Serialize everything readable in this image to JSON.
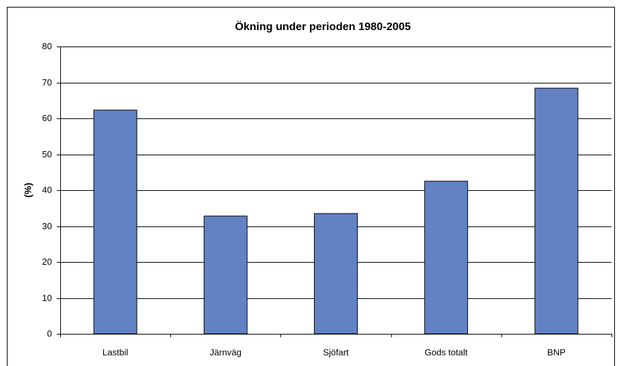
{
  "chart_data": {
    "type": "bar",
    "title": "Ökning under perioden 1980-2005",
    "y_label": "(%)",
    "categories": [
      "Lastbil",
      "Järnväg",
      "Sjöfart",
      "Gods totalt",
      "BNP"
    ],
    "values": [
      62.3,
      32.8,
      33.5,
      42.5,
      68.4
    ],
    "color": "#6382c4",
    "ylim": [
      0,
      80
    ],
    "yticks": [
      0,
      10,
      20,
      30,
      40,
      50,
      60,
      70,
      80
    ],
    "grid": true
  }
}
